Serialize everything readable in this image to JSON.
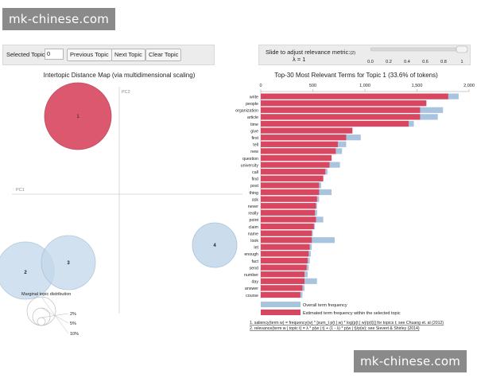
{
  "watermark": "mk-chinese.com",
  "controls": {
    "selected_topic_label": "Selected Topic:",
    "selected_topic_value": "0",
    "prev_label": "Previous Topic",
    "next_label": "Next Topic",
    "clear_label": "Clear Topic",
    "slider_label": "Slide to adjust relevance metric:",
    "slider_note": "(2)",
    "lambda_text": "λ = 1",
    "slider_ticks": [
      "0.0",
      "0.2",
      "0.4",
      "0.6",
      "0.8",
      "1"
    ],
    "slider_value": 1.0
  },
  "map": {
    "title": "Intertopic Distance Map (via multidimensional scaling)",
    "pc1": "PC1",
    "pc2": "PC2",
    "topics": [
      {
        "label": "1",
        "selected": true
      },
      {
        "label": "2",
        "selected": false
      },
      {
        "label": "3",
        "selected": false
      },
      {
        "label": "4",
        "selected": false
      }
    ],
    "marginal_title": "Marginal topic distribution",
    "marginal_labels": [
      "2%",
      "5%",
      "10%"
    ]
  },
  "chart_data": {
    "type": "bar",
    "title": "Top-30 Most Relevant Terms for Topic 1 (33.6% of tokens)",
    "xlim": [
      0,
      2000
    ],
    "ticks": [
      "0",
      "500",
      "1,000",
      "1,500",
      "2,000"
    ],
    "categories": [
      "write",
      "people",
      "organization",
      "article",
      "time",
      "give",
      "first",
      "tell",
      "new",
      "question",
      "university",
      "call",
      "find",
      "post",
      "thing",
      "ask",
      "never",
      "really",
      "point",
      "claim",
      "name",
      "look",
      "let",
      "enough",
      "fact",
      "send",
      "number",
      "day",
      "answer",
      "course"
    ],
    "series": [
      {
        "name": "Overall term frequency",
        "values": [
          1900,
          1590,
          1750,
          1700,
          1470,
          880,
          960,
          820,
          780,
          680,
          760,
          640,
          600,
          580,
          680,
          560,
          540,
          540,
          600,
          520,
          500,
          710,
          490,
          480,
          470,
          460,
          450,
          540,
          420,
          400
        ]
      },
      {
        "name": "Estimated term frequency within the selected topic",
        "values": [
          1800,
          1590,
          1530,
          1530,
          1420,
          880,
          820,
          740,
          720,
          680,
          660,
          620,
          600,
          560,
          560,
          540,
          530,
          520,
          530,
          510,
          490,
          490,
          470,
          460,
          450,
          440,
          420,
          420,
          400,
          380
        ]
      }
    ],
    "legend": [
      "Overall term frequency",
      "Estimated term frequency within the selected topic"
    ],
    "footnotes": [
      "1. saliency(term w) = frequency(w) * [sum_t p(t | w) * log(p(t | w)/p(t))] for topics t; see Chuang et. al (2012)",
      "2. relevance(term w | topic t) = λ * p(w | t) + (1 - λ) * p(w | t)/p(w); see Sievert & Shirley (2014)"
    ]
  },
  "colors": {
    "overall": "#a9c4df",
    "estimated": "#d9465f",
    "topic_fill": "#d9465f",
    "bubble_fill": "#c3d8ea"
  }
}
